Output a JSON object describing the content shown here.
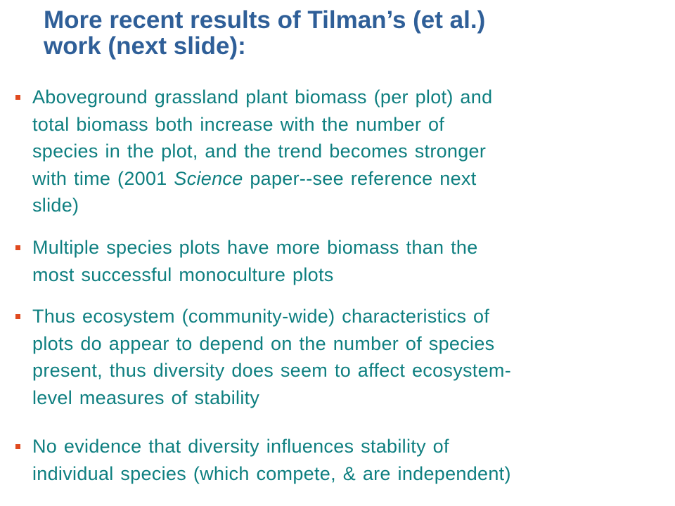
{
  "title": {
    "lines": [
      "More recent results of Tilman’s (et al.)",
      "work (next slide):"
    ]
  },
  "bullets": [
    {
      "lines": [
        [
          {
            "text": "Aboveground grassland plant biomass (per plot) and"
          }
        ],
        [
          {
            "text": "total biomass both increase with the number of"
          }
        ],
        [
          {
            "text": "species in the plot, and the trend becomes stronger"
          }
        ],
        [
          {
            "text": "with time (2001 "
          },
          {
            "text": "Science",
            "italic": true
          },
          {
            "text": " paper--see reference next"
          }
        ],
        [
          {
            "text": "slide)"
          }
        ]
      ]
    },
    {
      "lines": [
        [
          {
            "text": "Multiple species plots have more biomass than the"
          }
        ],
        [
          {
            "text": "most successful monoculture plots"
          }
        ]
      ]
    },
    {
      "lines": [
        [
          {
            "text": "Thus ecosystem (community-wide) characteristics of"
          }
        ],
        [
          {
            "text": "plots do appear to depend on the number of species"
          }
        ],
        [
          {
            "text": "present, thus diversity does seem to affect ecosystem-"
          }
        ],
        [
          {
            "text": "level measures of stability"
          }
        ]
      ]
    },
    {
      "lines": [
        [
          {
            "text": "No evidence that diversity influences stability of"
          }
        ],
        [
          {
            "text": "individual species (which compete, & are independent)"
          }
        ]
      ]
    }
  ]
}
